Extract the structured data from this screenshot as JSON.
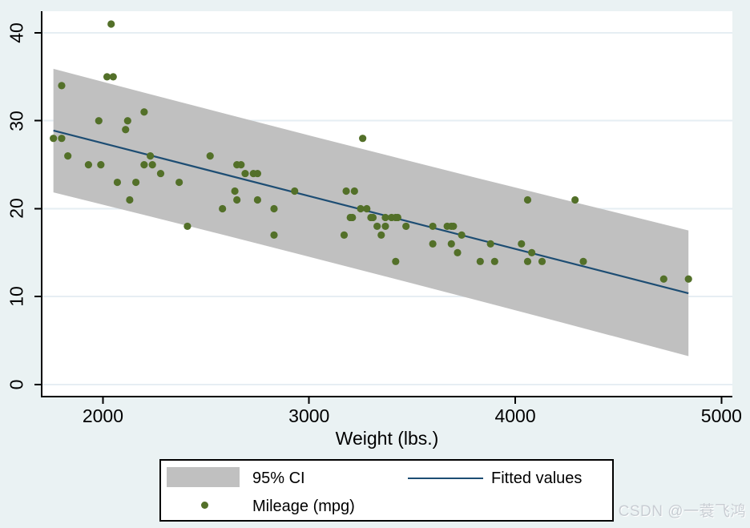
{
  "watermark": {
    "text": "CSDN @一蓑飞鸿"
  },
  "colors": {
    "background": "#eaf2f3",
    "plot_background": "#ffffff",
    "gridline": "#e6eef3",
    "axis": "#000000",
    "ci_band": "#c0c0c0",
    "fitted_line": "#1d4d73",
    "marker": "#537029",
    "watermark_text": "#c8cdd3"
  },
  "chart_data": {
    "type": "scatter",
    "title": "",
    "xlabel": "Weight (lbs.)",
    "ylabel": "",
    "xlim": [
      1703,
      5053
    ],
    "ylim": [
      -1.37,
      42.46
    ],
    "x_ticks": [
      2000,
      3000,
      4000,
      5000
    ],
    "y_ticks": [
      0,
      10,
      20,
      30,
      40
    ],
    "grid": true,
    "legend_position": "bottom-center",
    "series": [
      {
        "name": "95% CI",
        "type": "area",
        "color": "#c0c0c0",
        "x": [
          1760,
          2200,
          2600,
          3019,
          3400,
          3800,
          4200,
          4840
        ],
        "upper": [
          35.91,
          33.2,
          30.76,
          28.22,
          25.95,
          23.58,
          21.24,
          17.53
        ],
        "lower": [
          21.86,
          19.29,
          16.93,
          14.42,
          12.12,
          9.68,
          7.22,
          3.23
        ]
      },
      {
        "name": "Fitted values",
        "type": "line",
        "color": "#1d4d73",
        "x": [
          1760,
          4840
        ],
        "y": [
          28.89,
          10.38
        ]
      },
      {
        "name": "Mileage (mpg)",
        "type": "scatter",
        "color": "#537029",
        "marker_radius": 4.6,
        "points": [
          [
            2930,
            22
          ],
          [
            3350,
            17
          ],
          [
            2640,
            22
          ],
          [
            3250,
            20
          ],
          [
            4080,
            15
          ],
          [
            3670,
            18
          ],
          [
            2230,
            26
          ],
          [
            3280,
            20
          ],
          [
            3880,
            16
          ],
          [
            3400,
            19
          ],
          [
            4330,
            14
          ],
          [
            3900,
            14
          ],
          [
            4290,
            21
          ],
          [
            2110,
            29
          ],
          [
            3690,
            16
          ],
          [
            3180,
            22
          ],
          [
            3220,
            22
          ],
          [
            2750,
            24
          ],
          [
            3430,
            19
          ],
          [
            2120,
            30
          ],
          [
            3600,
            18
          ],
          [
            3600,
            16
          ],
          [
            3740,
            17
          ],
          [
            1800,
            28
          ],
          [
            2650,
            21
          ],
          [
            4840,
            12
          ],
          [
            4720,
            12
          ],
          [
            3830,
            14
          ],
          [
            2580,
            20
          ],
          [
            4060,
            14
          ],
          [
            3720,
            15
          ],
          [
            3370,
            18
          ],
          [
            4130,
            14
          ],
          [
            2830,
            20
          ],
          [
            4060,
            21
          ],
          [
            3310,
            19
          ],
          [
            3300,
            19
          ],
          [
            3690,
            18
          ],
          [
            3370,
            19
          ],
          [
            2730,
            24
          ],
          [
            4030,
            16
          ],
          [
            3260,
            28
          ],
          [
            1800,
            34
          ],
          [
            2200,
            25
          ],
          [
            2520,
            26
          ],
          [
            3330,
            18
          ],
          [
            3700,
            18
          ],
          [
            3470,
            18
          ],
          [
            3210,
            19
          ],
          [
            3200,
            19
          ],
          [
            3420,
            19
          ],
          [
            2690,
            24
          ],
          [
            2830,
            17
          ],
          [
            2070,
            23
          ],
          [
            2650,
            25
          ],
          [
            2370,
            23
          ],
          [
            2020,
            35
          ],
          [
            2280,
            24
          ],
          [
            2750,
            21
          ],
          [
            2130,
            21
          ],
          [
            2240,
            25
          ],
          [
            1760,
            28
          ],
          [
            1980,
            30
          ],
          [
            3420,
            14
          ],
          [
            1830,
            26
          ],
          [
            2050,
            35
          ],
          [
            2410,
            18
          ],
          [
            2200,
            31
          ],
          [
            2670,
            25
          ],
          [
            2160,
            23
          ],
          [
            2040,
            41
          ],
          [
            1930,
            25
          ],
          [
            1990,
            25
          ],
          [
            3170,
            17
          ]
        ]
      }
    ]
  }
}
